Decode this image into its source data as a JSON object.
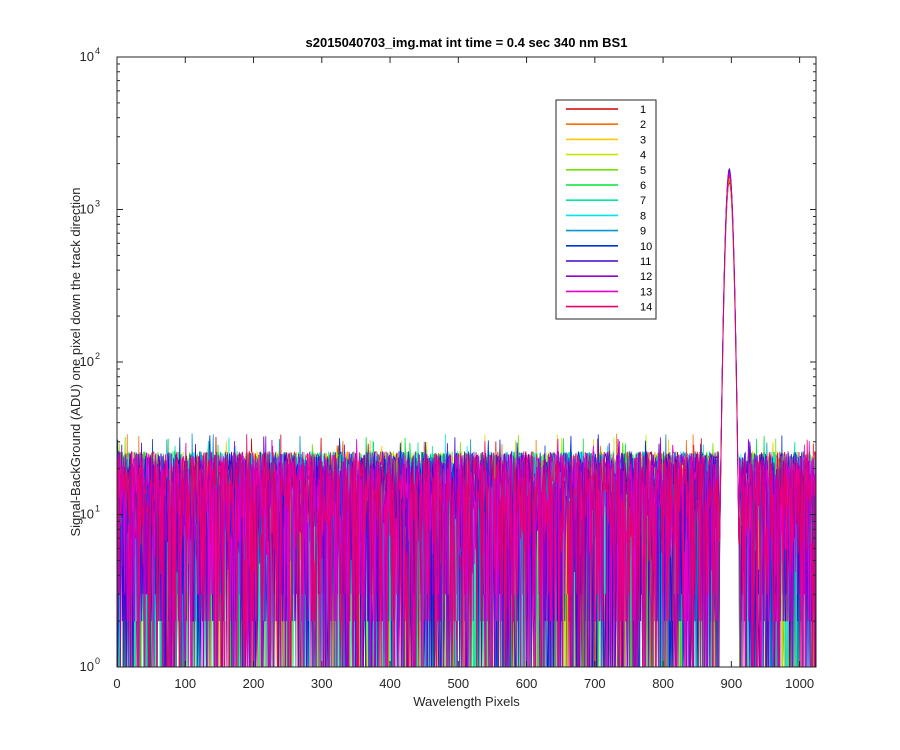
{
  "chart_data": {
    "type": "line",
    "title": "s2015040703_img.mat int time = 0.4 sec  340 nm BS1",
    "xlabel": "Wavelength Pixels",
    "ylabel": "Signal-BackGround (ADU) one pixel down the track direction",
    "xlim": [
      0,
      1024
    ],
    "ylim": [
      1,
      10000
    ],
    "yscale": "log",
    "xticks": [
      0,
      100,
      200,
      300,
      400,
      500,
      600,
      700,
      800,
      900,
      1000
    ],
    "yticks": [
      {
        "base": "10",
        "exp": "0",
        "value": 1
      },
      {
        "base": "10",
        "exp": "1",
        "value": 10
      },
      {
        "base": "10",
        "exp": "2",
        "value": 100
      },
      {
        "base": "10",
        "exp": "3",
        "value": 1000
      },
      {
        "base": "10",
        "exp": "4",
        "value": 10000
      }
    ],
    "grid": false,
    "legend_position": "top-right",
    "background_level": "noise between about 1 and 30 ADU",
    "peak": {
      "x": 897,
      "y": 1800
    },
    "series": [
      {
        "name": "1",
        "color": "#d40000",
        "peak_y": 1500
      },
      {
        "name": "2",
        "color": "#ff6a00",
        "peak_y": 1550
      },
      {
        "name": "3",
        "color": "#ffc800",
        "peak_y": 1600
      },
      {
        "name": "4",
        "color": "#c8e600",
        "peak_y": 1620
      },
      {
        "name": "5",
        "color": "#6ee600",
        "peak_y": 1650
      },
      {
        "name": "6",
        "color": "#00e632",
        "peak_y": 1680
      },
      {
        "name": "7",
        "color": "#00e69b",
        "peak_y": 1700
      },
      {
        "name": "8",
        "color": "#00e6e6",
        "peak_y": 1720
      },
      {
        "name": "9",
        "color": "#0096d2",
        "peak_y": 1750
      },
      {
        "name": "10",
        "color": "#0032d2",
        "peak_y": 1800
      },
      {
        "name": "11",
        "color": "#4600d2",
        "peak_y": 1850
      },
      {
        "name": "12",
        "color": "#9600d2",
        "peak_y": 1780
      },
      {
        "name": "13",
        "color": "#e600c8",
        "peak_y": 1700
      },
      {
        "name": "14",
        "color": "#e6006e",
        "peak_y": 1650
      }
    ]
  }
}
